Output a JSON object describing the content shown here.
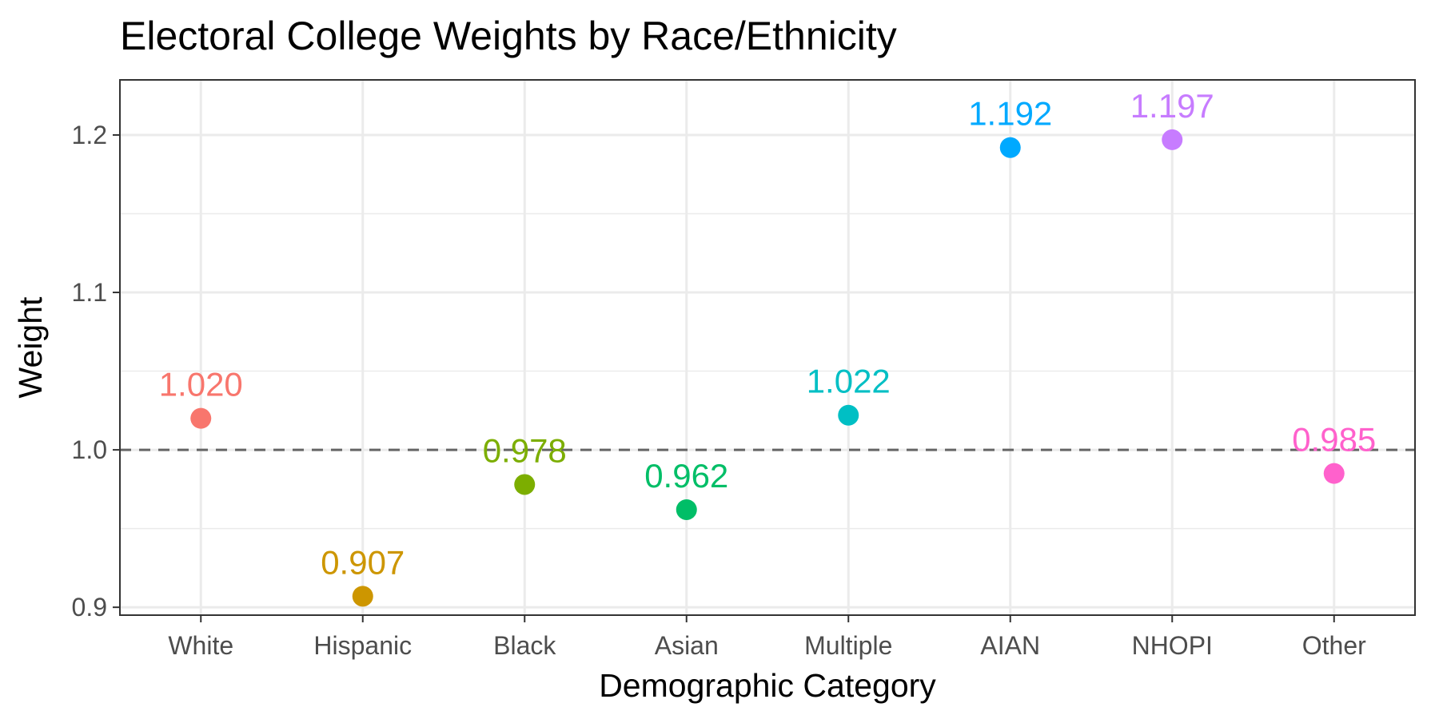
{
  "chart_data": {
    "type": "scatter",
    "title": "Electoral College Weights by Race/Ethnicity",
    "xlabel": "Demographic Category",
    "ylabel": "Weight",
    "categories": [
      "White",
      "Hispanic",
      "Black",
      "Asian",
      "Multiple",
      "AIAN",
      "NHOPI",
      "Other"
    ],
    "values": [
      1.02,
      0.907,
      0.978,
      0.962,
      1.022,
      1.192,
      1.197,
      0.985
    ],
    "labels": [
      "1.020",
      "0.907",
      "0.978",
      "0.962",
      "1.022",
      "1.192",
      "1.197",
      "0.985"
    ],
    "colors": [
      "#F8766D",
      "#CD9600",
      "#7CAE00",
      "#00BE67",
      "#00BFC4",
      "#00A9FF",
      "#C77CFF",
      "#FF61CC"
    ],
    "ylim": [
      0.895,
      1.235
    ],
    "y_ticks": [
      0.9,
      1.0,
      1.1,
      1.2
    ],
    "y_tick_labels": [
      "0.9",
      "1.0",
      "1.1",
      "1.2"
    ],
    "y_minor_ticks": [
      0.95,
      1.05,
      1.15
    ],
    "reference_line": 1.0,
    "grid": true,
    "legend": "none"
  }
}
